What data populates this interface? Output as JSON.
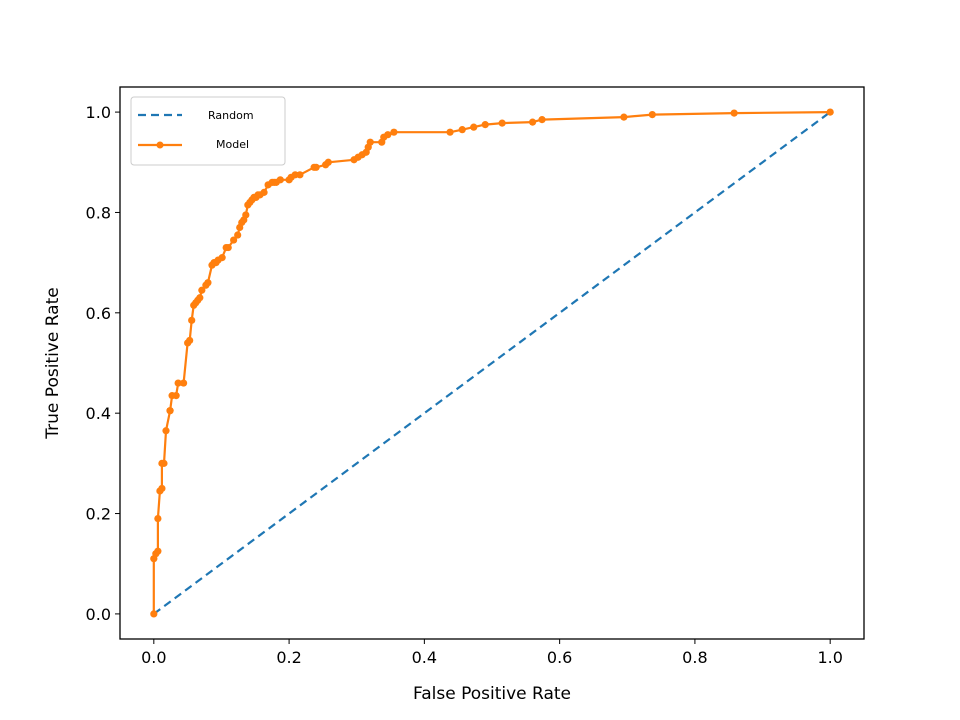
{
  "chart_data": {
    "type": "line",
    "title": "",
    "xlabel": "False Positive Rate",
    "ylabel": "True Positive Rate",
    "xlim": [
      -0.05,
      1.05
    ],
    "ylim": [
      -0.05,
      1.05
    ],
    "xticks": [
      0.0,
      0.2,
      0.4,
      0.6,
      0.8,
      1.0
    ],
    "xtick_labels": [
      "0.0",
      "0.2",
      "0.4",
      "0.6",
      "0.8",
      "1.0"
    ],
    "yticks": [
      0.0,
      0.2,
      0.4,
      0.6,
      0.8,
      1.0
    ],
    "ytick_labels": [
      "0.0",
      "0.2",
      "0.4",
      "0.6",
      "0.8",
      "1.0"
    ],
    "grid": false,
    "legend_position": "top-left",
    "series": [
      {
        "name": "Random",
        "style": "dashed",
        "marker": "none",
        "color": "#1f77b4",
        "x": [
          0.0,
          1.0
        ],
        "y": [
          0.0,
          1.0
        ]
      },
      {
        "name": "Model",
        "style": "solid",
        "marker": "circle",
        "color": "#ff7f0e",
        "x": [
          0.0,
          0.0,
          0.003,
          0.006,
          0.006,
          0.009,
          0.012,
          0.012,
          0.015,
          0.018,
          0.024,
          0.024,
          0.027,
          0.033,
          0.036,
          0.044,
          0.05,
          0.053,
          0.056,
          0.059,
          0.062,
          0.065,
          0.068,
          0.071,
          0.077,
          0.08,
          0.086,
          0.089,
          0.092,
          0.095,
          0.101,
          0.107,
          0.11,
          0.118,
          0.124,
          0.127,
          0.13,
          0.133,
          0.136,
          0.139,
          0.142,
          0.145,
          0.148,
          0.151,
          0.154,
          0.157,
          0.163,
          0.169,
          0.175,
          0.178,
          0.181,
          0.187,
          0.2,
          0.203,
          0.209,
          0.216,
          0.237,
          0.24,
          0.254,
          0.258,
          0.296,
          0.302,
          0.308,
          0.314,
          0.317,
          0.32,
          0.337,
          0.34,
          0.346,
          0.355,
          0.438,
          0.456,
          0.473,
          0.49,
          0.515,
          0.56,
          0.574,
          0.695,
          0.737,
          0.858,
          1.0
        ],
        "y": [
          0.0,
          0.11,
          0.12,
          0.125,
          0.19,
          0.245,
          0.25,
          0.3,
          0.3,
          0.365,
          0.405,
          0.405,
          0.435,
          0.435,
          0.46,
          0.46,
          0.54,
          0.545,
          0.585,
          0.615,
          0.62,
          0.625,
          0.63,
          0.645,
          0.655,
          0.66,
          0.695,
          0.7,
          0.7,
          0.705,
          0.71,
          0.73,
          0.73,
          0.745,
          0.755,
          0.77,
          0.78,
          0.785,
          0.795,
          0.815,
          0.82,
          0.825,
          0.83,
          0.83,
          0.835,
          0.835,
          0.84,
          0.855,
          0.86,
          0.86,
          0.86,
          0.865,
          0.865,
          0.87,
          0.875,
          0.875,
          0.89,
          0.89,
          0.895,
          0.9,
          0.905,
          0.91,
          0.915,
          0.92,
          0.93,
          0.94,
          0.94,
          0.95,
          0.955,
          0.96,
          0.96,
          0.965,
          0.97,
          0.975,
          0.978,
          0.98,
          0.985,
          0.99,
          0.995,
          0.998,
          1.0
        ]
      }
    ]
  }
}
